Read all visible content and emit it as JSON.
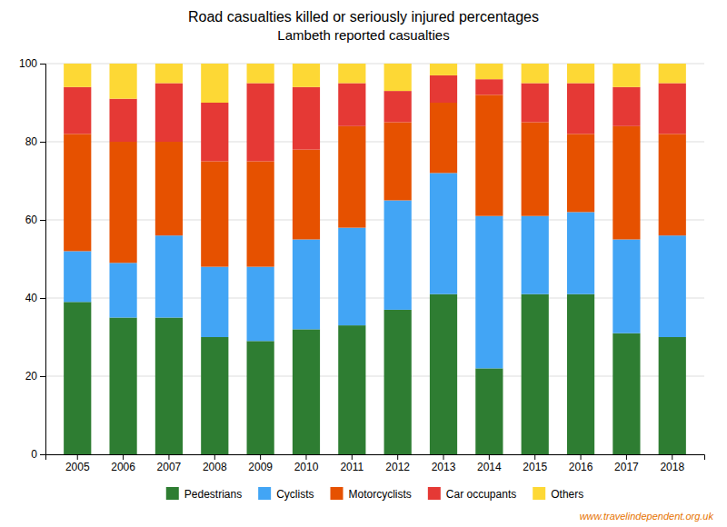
{
  "chart_data": {
    "type": "bar",
    "stacked": true,
    "title": "Road casualties killed or seriously injured percentages",
    "subtitle": "Lambeth reported casualties",
    "categories": [
      "2005",
      "2006",
      "2007",
      "2008",
      "2009",
      "2010",
      "2011",
      "2012",
      "2013",
      "2014",
      "2015",
      "2016",
      "2017",
      "2018"
    ],
    "series": [
      {
        "name": "Pedestrians",
        "color": "#2e7d32",
        "values": [
          39,
          35,
          35,
          30,
          29,
          32,
          33,
          37,
          41,
          22,
          41,
          41,
          31,
          30
        ]
      },
      {
        "name": "Cyclists",
        "color": "#42a5f5",
        "values": [
          13,
          14,
          21,
          18,
          19,
          23,
          25,
          28,
          31,
          39,
          20,
          21,
          24,
          26
        ]
      },
      {
        "name": "Motorcyclists",
        "color": "#e65100",
        "values": [
          30,
          31,
          24,
          27,
          27,
          23,
          26,
          20,
          18,
          31,
          24,
          20,
          29,
          26
        ]
      },
      {
        "name": "Car occupants",
        "color": "#e53935",
        "values": [
          12,
          11,
          15,
          15,
          20,
          16,
          11,
          8,
          7,
          4,
          10,
          13,
          10,
          13
        ]
      },
      {
        "name": "Others",
        "color": "#fdd835",
        "values": [
          6,
          9,
          5,
          10,
          5,
          6,
          5,
          7,
          3,
          4,
          5,
          5,
          6,
          5
        ]
      }
    ],
    "ylim": [
      0,
      100
    ],
    "yticks": [
      0,
      20,
      40,
      60,
      80,
      100
    ],
    "grid": true,
    "legend": "bottom",
    "annotations": [
      "www.travelindependent.org.uk"
    ]
  }
}
